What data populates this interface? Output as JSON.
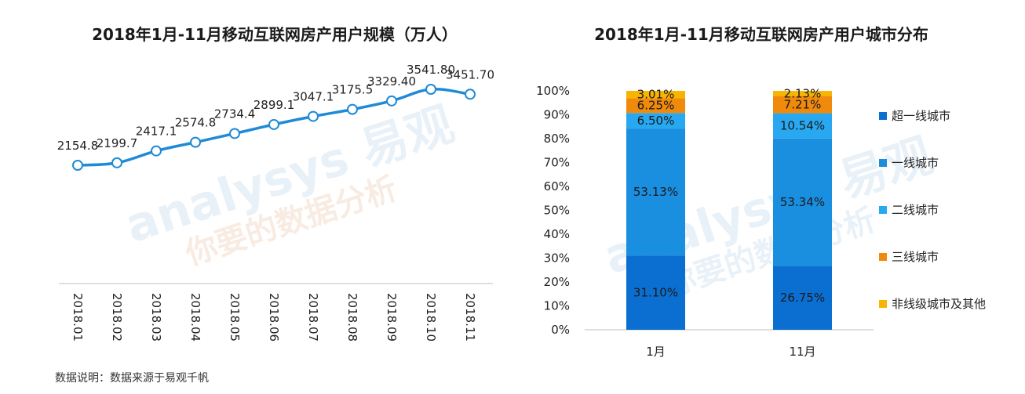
{
  "titles": {
    "left": "2018年1月-11月移动互联网房产用户规模（万人）",
    "right": "2018年1月-11月移动互联网房产用户城市分布"
  },
  "note": "数据说明：数据来源于易观千帆",
  "watermark": {
    "brand": "analysys 易观",
    "slogan": "你要的数据分析"
  },
  "colors": {
    "line": "#1f8ad6",
    "super_first_tier": "#0b6fd1",
    "first_tier": "#1a8fe0",
    "second_tier": "#28a8f0",
    "third_tier": "#f08a0c",
    "other": "#f7b500"
  },
  "chart_data": [
    {
      "type": "line",
      "title": "2018年1月-11月移动互联网房产用户规模（万人）",
      "categories": [
        "2018.01",
        "2018.02",
        "2018.03",
        "2018.04",
        "2018.05",
        "2018.06",
        "2018.07",
        "2018.08",
        "2018.09",
        "2018.10",
        "2018.11"
      ],
      "values": [
        2154.8,
        2199.7,
        2417.1,
        2574.8,
        2734.4,
        2899.1,
        3047.1,
        3175.5,
        3329.4,
        3541.8,
        3451.7
      ],
      "labels": [
        "2154.8",
        "2199.7",
        "2417.1",
        "2574.8",
        "2734.4",
        "2899.1",
        "3047.1",
        "3175.5",
        "3329.40",
        "3541.80",
        "3451.70"
      ],
      "grid": false,
      "yaxis": false
    },
    {
      "type": "bar",
      "stacked": true,
      "percent": true,
      "title": "2018年1月-11月移动互联网房产用户城市分布",
      "categories": [
        "1月",
        "11月"
      ],
      "yticks": [
        "0%",
        "10%",
        "20%",
        "30%",
        "40%",
        "50%",
        "60%",
        "70%",
        "80%",
        "90%",
        "100%"
      ],
      "ylim": [
        0,
        100
      ],
      "series": [
        {
          "name": "超一线城市",
          "values": [
            31.1,
            26.75
          ],
          "labels": [
            "31.10%",
            "26.75%"
          ]
        },
        {
          "name": "一线城市",
          "values": [
            53.13,
            53.34
          ],
          "labels": [
            "53.13%",
            "53.34%"
          ]
        },
        {
          "name": "二线城市",
          "values": [
            6.5,
            10.54
          ],
          "labels": [
            "6.50%",
            "10.54%"
          ]
        },
        {
          "name": "三线城市",
          "values": [
            6.25,
            7.21
          ],
          "labels": [
            "6.25%",
            "7.21%"
          ]
        },
        {
          "name": "非线级城市及其他",
          "values": [
            3.01,
            2.13
          ],
          "labels": [
            "3.01%",
            "2.13%"
          ]
        }
      ],
      "legend": "right"
    }
  ]
}
